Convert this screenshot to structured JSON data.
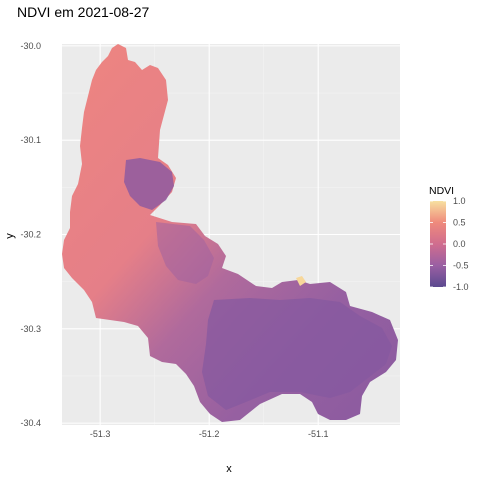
{
  "chart_data": {
    "type": "heatmap",
    "title": "NDVI em 2021-08-27",
    "xlabel": "x",
    "ylabel": "y",
    "x_ticks": [
      -51.3,
      -51.2,
      -51.1
    ],
    "y_ticks": [
      -30.0,
      -30.1,
      -30.2,
      -30.3,
      -30.4
    ],
    "x_tick_labels": [
      "-51.3",
      "-51.2",
      "-51.1"
    ],
    "y_tick_labels": [
      "-30.0",
      "-30.1",
      "-30.2",
      "-30.3",
      "-30.4"
    ],
    "xlim": [
      -51.335,
      -51.025
    ],
    "ylim": [
      -30.402,
      -29.998
    ],
    "legend": {
      "title": "NDVI",
      "placement": "right",
      "range": [
        -1.0,
        1.0
      ],
      "ticks": [
        1.0,
        0.5,
        0.0,
        -0.5,
        -1.0
      ],
      "tick_labels": [
        "1.0",
        "0.5",
        "0.0",
        "-0.5",
        "-1.0"
      ],
      "palette": [
        "#5b4a8f",
        "#9a5fa3",
        "#d06d8e",
        "#ef8a7c",
        "#f7e0a0"
      ]
    },
    "panel_background": "#ebebeb",
    "grid": true,
    "region_summary": {
      "north_west_lobe_ndvi": 0.25,
      "south_east_lobe_ndvi": -0.55
    }
  }
}
